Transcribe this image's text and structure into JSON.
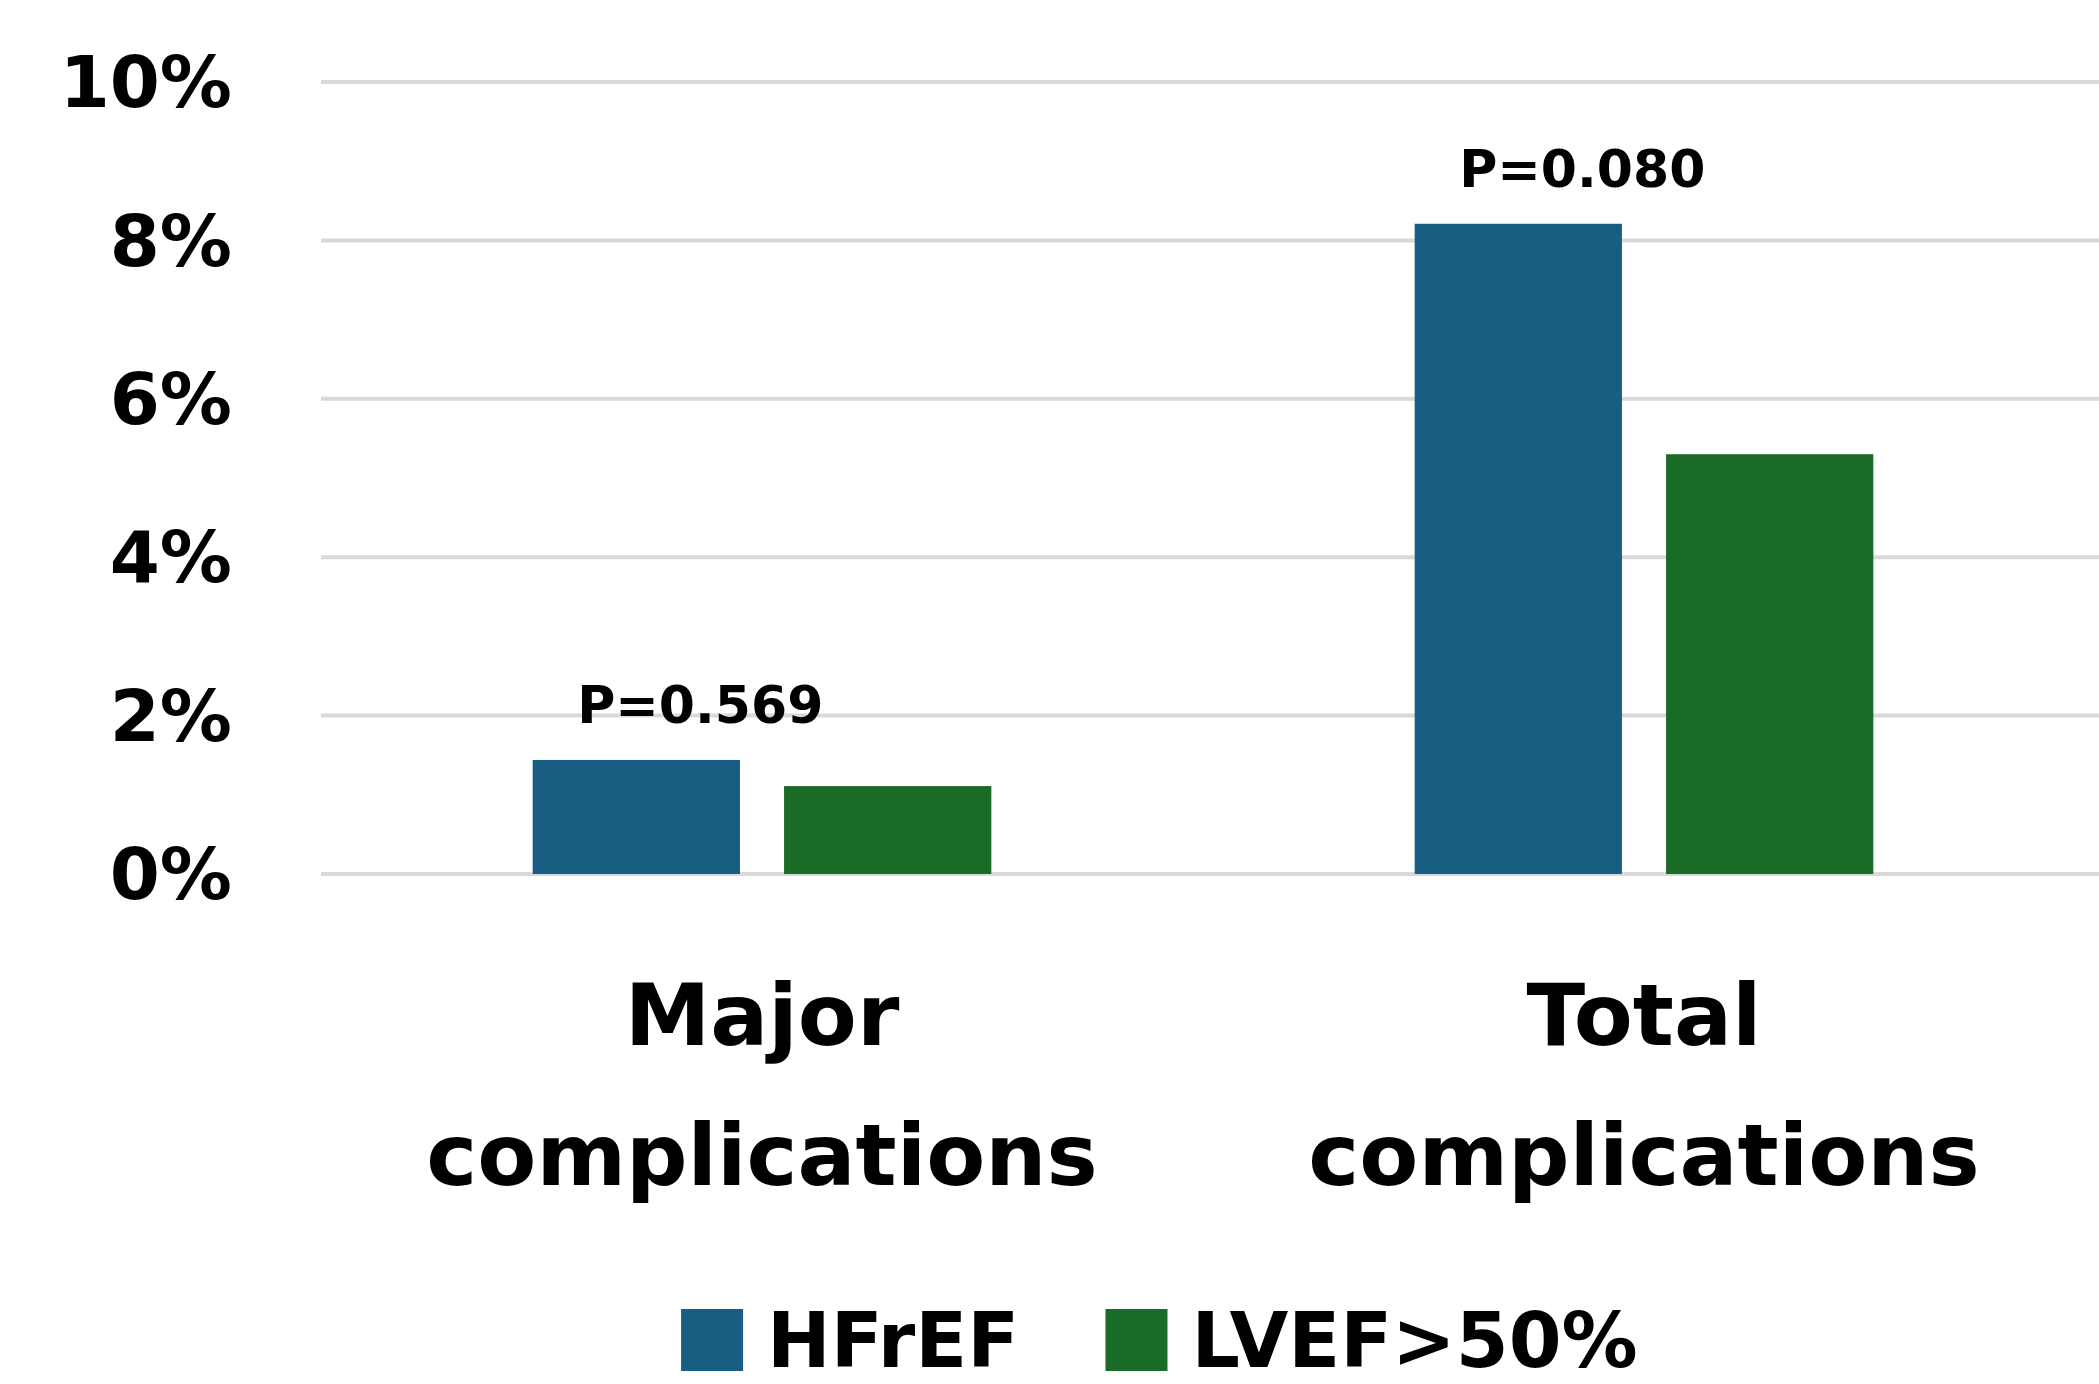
{
  "chart_data": {
    "type": "bar",
    "categories": [
      "Major complications",
      "Total complications"
    ],
    "series": [
      {
        "name": "HFrEF",
        "color": "#175e82",
        "values": [
          1.44,
          8.21
        ]
      },
      {
        "name": "LVEF>50%",
        "color": "#1a6b27",
        "values": [
          1.11,
          5.3
        ]
      }
    ],
    "ylim": [
      0,
      10
    ],
    "yticks": [
      {
        "value": 0,
        "label": "0%"
      },
      {
        "value": 2,
        "label": "2%"
      },
      {
        "value": 4,
        "label": "4%"
      },
      {
        "value": 6,
        "label": "6%"
      },
      {
        "value": 8,
        "label": "8%"
      },
      {
        "value": 10,
        "label": "10%"
      }
    ],
    "grid": "y",
    "legend": "bottom",
    "annotations": [
      "P=0.569",
      "P=0.080"
    ]
  }
}
